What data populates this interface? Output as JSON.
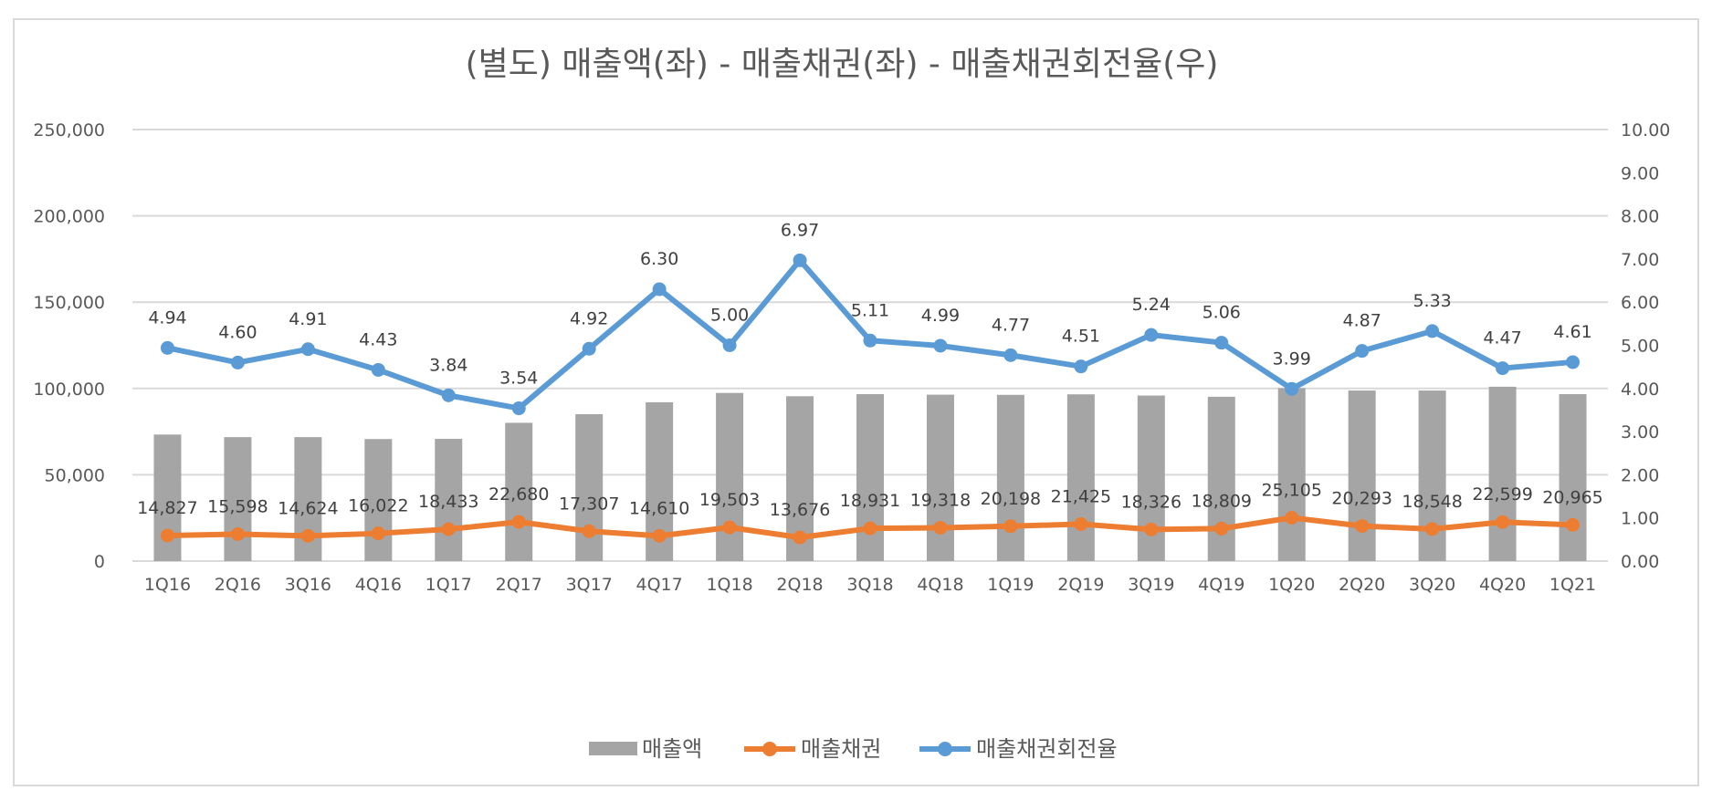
{
  "chart_data": {
    "type": "bar+line",
    "title": "(별도) 매출액(좌) - 매출채권(좌) - 매출채권회전율(우)",
    "categories": [
      "1Q16",
      "2Q16",
      "3Q16",
      "4Q16",
      "1Q17",
      "2Q17",
      "3Q17",
      "4Q17",
      "1Q18",
      "2Q18",
      "3Q18",
      "4Q18",
      "1Q19",
      "2Q19",
      "3Q19",
      "4Q19",
      "1Q20",
      "2Q20",
      "3Q20",
      "4Q20",
      "1Q21"
    ],
    "series": [
      {
        "name": "매출액",
        "type": "bar",
        "axis": "left",
        "color": "#a5a5a5",
        "values": [
          73300,
          71800,
          71800,
          70700,
          70800,
          80100,
          85100,
          92000,
          97400,
          95500,
          96700,
          96400,
          96300,
          96600,
          95900,
          95200,
          100200,
          98800,
          98800,
          101000,
          96700
        ]
      },
      {
        "name": "매출채권",
        "type": "line",
        "axis": "left",
        "color": "#ed7d31",
        "values": [
          14827,
          15598,
          14624,
          16022,
          18433,
          22680,
          17307,
          14610,
          19503,
          13676,
          18931,
          19318,
          20198,
          21425,
          18326,
          18809,
          25105,
          20293,
          18548,
          22599,
          20965
        ],
        "labels": [
          "14,827",
          "15,598",
          "14,624",
          "16,022",
          "18,433",
          "22,680",
          "17,307",
          "14,610",
          "19,503",
          "13,676",
          "18,931",
          "19,318",
          "20,198",
          "21,425",
          "18,326",
          "18,809",
          "25,105",
          "20,293",
          "18,548",
          "22,599",
          "20,965"
        ]
      },
      {
        "name": "매출채권회전율",
        "type": "line",
        "axis": "right",
        "color": "#5b9bd5",
        "values": [
          4.94,
          4.6,
          4.91,
          4.43,
          3.84,
          3.54,
          4.92,
          6.3,
          5.0,
          6.97,
          5.11,
          4.99,
          4.77,
          4.51,
          5.24,
          5.06,
          3.99,
          4.87,
          5.33,
          4.47,
          4.61
        ],
        "labels": [
          "4.94",
          "4.60",
          "4.91",
          "4.43",
          "3.84",
          "3.54",
          "4.92",
          "6.30",
          "5.00",
          "6.97",
          "5.11",
          "4.99",
          "4.77",
          "4.51",
          "5.24",
          "5.06",
          "3.99",
          "4.87",
          "5.33",
          "4.47",
          "4.61"
        ]
      }
    ],
    "left_axis": {
      "ylim": [
        0,
        250000
      ],
      "ticks": [
        0,
        50000,
        100000,
        150000,
        200000,
        250000
      ],
      "tick_labels": [
        "0",
        "50,000",
        "100,000",
        "150,000",
        "200,000",
        "250,000"
      ]
    },
    "right_axis": {
      "ylim": [
        0,
        10
      ],
      "ticks": [
        0,
        1,
        2,
        3,
        4,
        5,
        6,
        7,
        8,
        9,
        10
      ],
      "tick_labels": [
        "0.00",
        "1.00",
        "2.00",
        "3.00",
        "4.00",
        "5.00",
        "6.00",
        "7.00",
        "8.00",
        "9.00",
        "10.00"
      ]
    },
    "grid": true,
    "legend": "bottom",
    "gridline_color": "#d9d9d9"
  }
}
